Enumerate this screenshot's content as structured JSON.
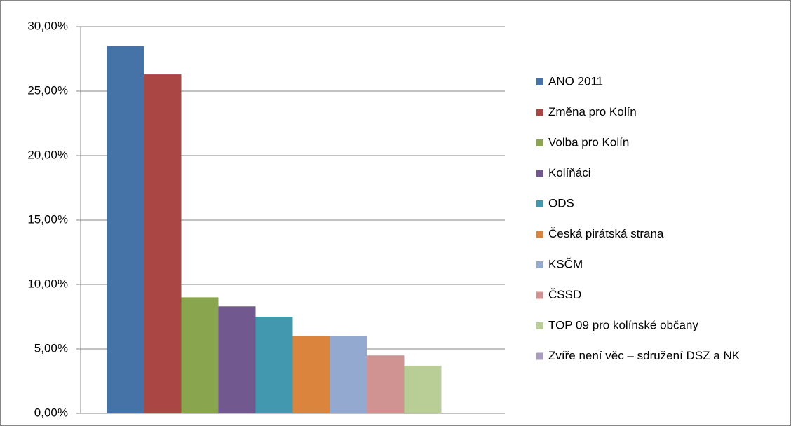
{
  "chart_data": {
    "type": "bar",
    "categories": [
      null
    ],
    "series": [
      {
        "name": "ANO 2011",
        "color": "#4572a7",
        "values": [
          28.5
        ]
      },
      {
        "name": "Změna pro Kolín",
        "color": "#aa4643",
        "values": [
          26.3
        ]
      },
      {
        "name": "Volba pro Kolín",
        "color": "#89a54e",
        "values": [
          9.0
        ]
      },
      {
        "name": "Kolíňáci",
        "color": "#71588f",
        "values": [
          8.3
        ]
      },
      {
        "name": "ODS",
        "color": "#4198af",
        "values": [
          7.5
        ]
      },
      {
        "name": "Česká pirátská strana",
        "color": "#db843d",
        "values": [
          6.0
        ]
      },
      {
        "name": "KSČM",
        "color": "#93a9cf",
        "values": [
          6.0
        ]
      },
      {
        "name": "ČSSD",
        "color": "#d19392",
        "values": [
          4.5
        ]
      },
      {
        "name": "TOP 09 pro kolínské občany",
        "color": "#b9cd96",
        "values": [
          3.7
        ]
      },
      {
        "name": "Zvíře není věc – sdružení DSZ a NK",
        "color": "#a99bbd",
        "values": [
          0
        ]
      }
    ],
    "ylim": [
      0,
      30
    ],
    "yticks": [
      {
        "value": 0,
        "label": "0,00%"
      },
      {
        "value": 5,
        "label": "5,00%"
      },
      {
        "value": 10,
        "label": "10,00%"
      },
      {
        "value": 15,
        "label": "15,00%"
      },
      {
        "value": 20,
        "label": "20,00%"
      },
      {
        "value": 25,
        "label": "25,00%"
      },
      {
        "value": 30,
        "label": "30,00%"
      }
    ],
    "grid": true,
    "legend": "right"
  }
}
